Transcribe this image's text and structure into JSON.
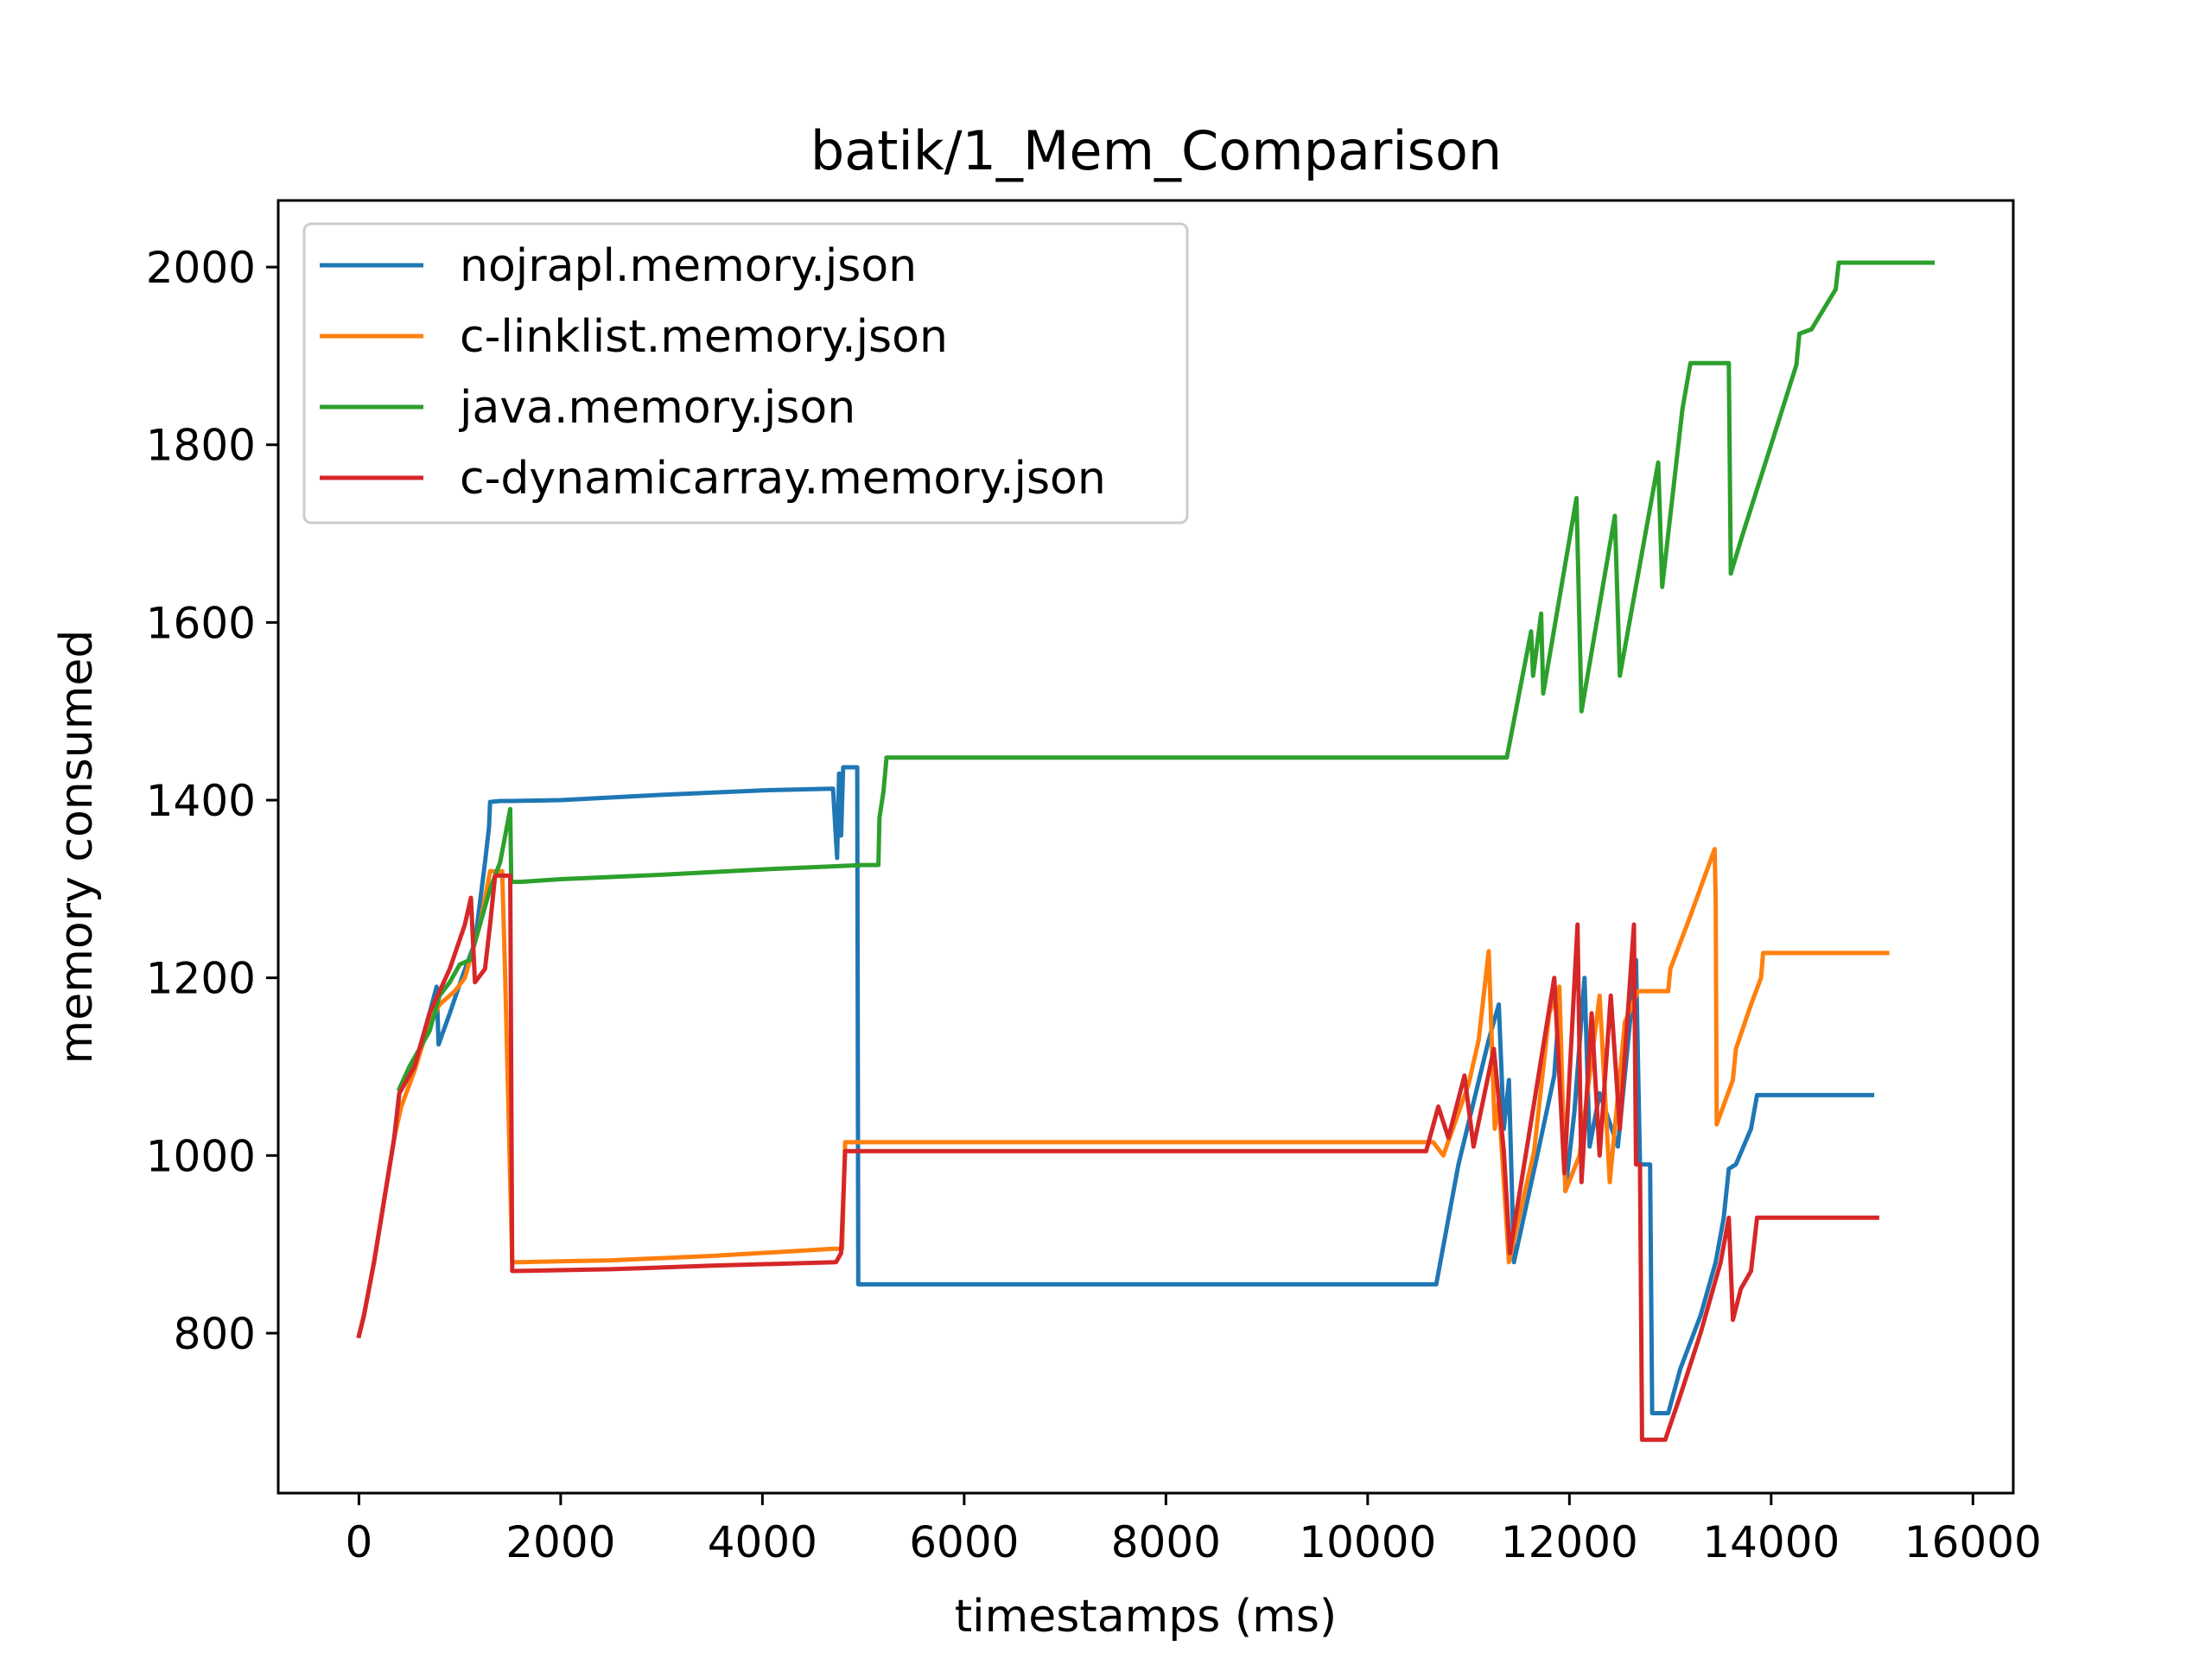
{
  "chart_data": {
    "type": "line",
    "title": "batik/1_Mem_Comparison",
    "xlabel": "timestamps (ms)",
    "ylabel": "memory consumed",
    "xlim": [
      -800,
      16400
    ],
    "ylim": [
      620,
      2075
    ],
    "xticks": [
      0,
      2000,
      4000,
      6000,
      8000,
      10000,
      12000,
      14000,
      16000
    ],
    "yticks": [
      800,
      1000,
      1200,
      1400,
      1600,
      1800,
      2000
    ],
    "grid": false,
    "legend_position": "upper-left",
    "series": [
      {
        "name": "nojrapl.memory.json",
        "color": "#1f77b4",
        "points": [
          [
            0,
            797
          ],
          [
            50,
            820
          ],
          [
            150,
            880
          ],
          [
            250,
            950
          ],
          [
            350,
            1020
          ],
          [
            400,
            1070
          ],
          [
            550,
            1100
          ],
          [
            700,
            1160
          ],
          [
            770,
            1190
          ],
          [
            790,
            1125
          ],
          [
            900,
            1160
          ],
          [
            1020,
            1200
          ],
          [
            1150,
            1240
          ],
          [
            1250,
            1330
          ],
          [
            1290,
            1370
          ],
          [
            1300,
            1398
          ],
          [
            1400,
            1399
          ],
          [
            1500,
            1399
          ],
          [
            2000,
            1400
          ],
          [
            3000,
            1406
          ],
          [
            4000,
            1411
          ],
          [
            4700,
            1413
          ],
          [
            4740,
            1335
          ],
          [
            4760,
            1430
          ],
          [
            4780,
            1360
          ],
          [
            4800,
            1437
          ],
          [
            4940,
            1437
          ],
          [
            4950,
            855
          ],
          [
            5000,
            855
          ],
          [
            8000,
            855
          ],
          [
            10680,
            855
          ],
          [
            10900,
            990
          ],
          [
            11200,
            1130
          ],
          [
            11300,
            1170
          ],
          [
            11350,
            1030
          ],
          [
            11400,
            1085
          ],
          [
            11450,
            880
          ],
          [
            11700,
            1010
          ],
          [
            11850,
            1090
          ],
          [
            11900,
            1170
          ],
          [
            11960,
            960
          ],
          [
            12050,
            1050
          ],
          [
            12150,
            1200
          ],
          [
            12200,
            1010
          ],
          [
            12300,
            1070
          ],
          [
            12480,
            1010
          ],
          [
            12660,
            1220
          ],
          [
            12700,
            990
          ],
          [
            12800,
            990
          ],
          [
            12820,
            710
          ],
          [
            12980,
            710
          ],
          [
            13100,
            760
          ],
          [
            13300,
            820
          ],
          [
            13450,
            880
          ],
          [
            13530,
            930
          ],
          [
            13580,
            985
          ],
          [
            13650,
            990
          ],
          [
            13800,
            1030
          ],
          [
            13860,
            1068
          ],
          [
            15000,
            1068
          ]
        ]
      },
      {
        "name": "c-linklist.memory.json",
        "color": "#ff7f0e",
        "points": [
          [
            0,
            797
          ],
          [
            50,
            820
          ],
          [
            150,
            880
          ],
          [
            250,
            950
          ],
          [
            350,
            1020
          ],
          [
            420,
            1055
          ],
          [
            550,
            1095
          ],
          [
            700,
            1150
          ],
          [
            800,
            1170
          ],
          [
            950,
            1185
          ],
          [
            1050,
            1200
          ],
          [
            1200,
            1260
          ],
          [
            1300,
            1320
          ],
          [
            1420,
            1320
          ],
          [
            1450,
            1200
          ],
          [
            1520,
            880
          ],
          [
            1600,
            880
          ],
          [
            2500,
            882
          ],
          [
            3500,
            887
          ],
          [
            4700,
            895
          ],
          [
            4790,
            895
          ],
          [
            4820,
            1015
          ],
          [
            5000,
            1015
          ],
          [
            8000,
            1015
          ],
          [
            10650,
            1015
          ],
          [
            10750,
            1000
          ],
          [
            11000,
            1080
          ],
          [
            11100,
            1130
          ],
          [
            11200,
            1230
          ],
          [
            11260,
            1030
          ],
          [
            11300,
            1060
          ],
          [
            11400,
            880
          ],
          [
            11650,
            1005
          ],
          [
            11800,
            1160
          ],
          [
            11900,
            1190
          ],
          [
            11960,
            960
          ],
          [
            12100,
            1000
          ],
          [
            12300,
            1180
          ],
          [
            12400,
            970
          ],
          [
            12550,
            1150
          ],
          [
            12680,
            1185
          ],
          [
            12980,
            1185
          ],
          [
            13000,
            1210
          ],
          [
            13200,
            1270
          ],
          [
            13440,
            1345
          ],
          [
            13450,
            1290
          ],
          [
            13460,
            1035
          ],
          [
            13620,
            1085
          ],
          [
            13650,
            1120
          ],
          [
            13800,
            1170
          ],
          [
            13900,
            1200
          ],
          [
            13920,
            1228
          ],
          [
            15150,
            1228
          ]
        ]
      },
      {
        "name": "java.memory.json",
        "color": "#2ca02c",
        "points": [
          [
            400,
            1075
          ],
          [
            500,
            1100
          ],
          [
            700,
            1140
          ],
          [
            800,
            1180
          ],
          [
            900,
            1195
          ],
          [
            1000,
            1215
          ],
          [
            1100,
            1220
          ],
          [
            1200,
            1260
          ],
          [
            1300,
            1300
          ],
          [
            1400,
            1330
          ],
          [
            1500,
            1390
          ],
          [
            1510,
            1308
          ],
          [
            1600,
            1308
          ],
          [
            2000,
            1311
          ],
          [
            3000,
            1316
          ],
          [
            4000,
            1322
          ],
          [
            5000,
            1327
          ],
          [
            5150,
            1327
          ],
          [
            5160,
            1380
          ],
          [
            5200,
            1410
          ],
          [
            5230,
            1448
          ],
          [
            8000,
            1448
          ],
          [
            11380,
            1448
          ],
          [
            11620,
            1590
          ],
          [
            11640,
            1540
          ],
          [
            11720,
            1610
          ],
          [
            11740,
            1520
          ],
          [
            12070,
            1740
          ],
          [
            12120,
            1500
          ],
          [
            12450,
            1720
          ],
          [
            12500,
            1540
          ],
          [
            12880,
            1780
          ],
          [
            12920,
            1640
          ],
          [
            13120,
            1840
          ],
          [
            13200,
            1892
          ],
          [
            13580,
            1892
          ],
          [
            13600,
            1655
          ],
          [
            13720,
            1700
          ],
          [
            14000,
            1800
          ],
          [
            14250,
            1890
          ],
          [
            14280,
            1925
          ],
          [
            14400,
            1930
          ],
          [
            14640,
            1975
          ],
          [
            14670,
            2005
          ],
          [
            15600,
            2005
          ]
        ]
      },
      {
        "name": "c-dynamicarray.memory.json",
        "color": "#d62728",
        "points": [
          [
            0,
            797
          ],
          [
            50,
            820
          ],
          [
            150,
            880
          ],
          [
            250,
            950
          ],
          [
            350,
            1020
          ],
          [
            400,
            1070
          ],
          [
            550,
            1100
          ],
          [
            700,
            1160
          ],
          [
            900,
            1210
          ],
          [
            1050,
            1260
          ],
          [
            1110,
            1290
          ],
          [
            1150,
            1195
          ],
          [
            1250,
            1210
          ],
          [
            1300,
            1260
          ],
          [
            1350,
            1315
          ],
          [
            1500,
            1315
          ],
          [
            1520,
            870
          ],
          [
            2500,
            872
          ],
          [
            3500,
            876
          ],
          [
            4730,
            880
          ],
          [
            4780,
            890
          ],
          [
            4820,
            1005
          ],
          [
            5000,
            1005
          ],
          [
            8000,
            1005
          ],
          [
            10580,
            1005
          ],
          [
            10700,
            1055
          ],
          [
            10800,
            1020
          ],
          [
            10960,
            1090
          ],
          [
            11050,
            1010
          ],
          [
            11250,
            1120
          ],
          [
            11350,
            1005
          ],
          [
            11410,
            890
          ],
          [
            11850,
            1200
          ],
          [
            11950,
            980
          ],
          [
            12080,
            1260
          ],
          [
            12120,
            970
          ],
          [
            12220,
            1160
          ],
          [
            12300,
            1000
          ],
          [
            12410,
            1180
          ],
          [
            12500,
            1030
          ],
          [
            12640,
            1260
          ],
          [
            12660,
            990
          ],
          [
            12700,
            990
          ],
          [
            12720,
            680
          ],
          [
            12950,
            680
          ],
          [
            13100,
            730
          ],
          [
            13300,
            800
          ],
          [
            13500,
            880
          ],
          [
            13580,
            930
          ],
          [
            13620,
            815
          ],
          [
            13700,
            850
          ],
          [
            13800,
            870
          ],
          [
            13860,
            930
          ],
          [
            15050,
            930
          ]
        ]
      }
    ]
  }
}
